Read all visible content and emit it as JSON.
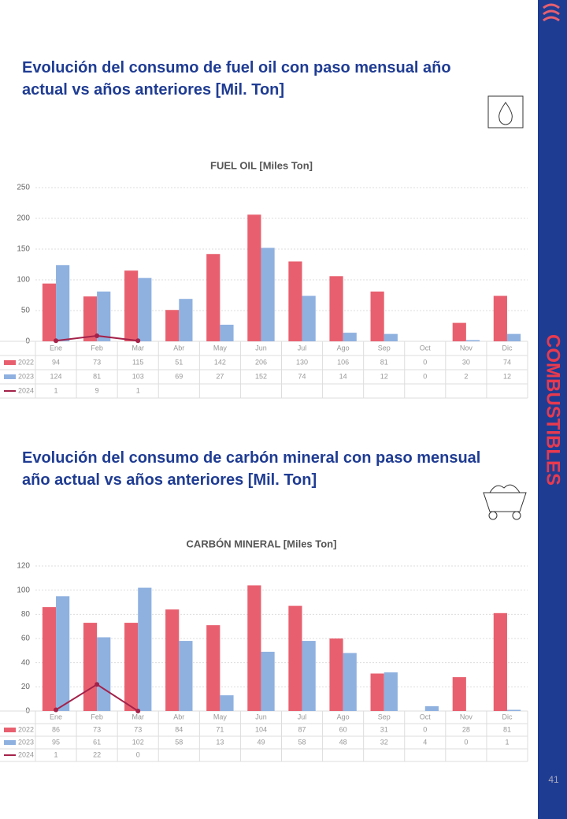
{
  "headings": [
    "Evolución del consumo de fuel oil con paso mensual año actual vs años anteriores [Mil. Ton]",
    "Evolución del consumo de carbón mineral con paso mensual año actual vs años anteriores [Mil. Ton]"
  ],
  "sidebar": "COMBUSTIBLES",
  "page_number": "41",
  "chart_data": [
    {
      "type": "bar",
      "title": "FUEL OIL [Miles Ton]",
      "categories": [
        "Ene",
        "Feb",
        "Mar",
        "Abr",
        "May",
        "Jun",
        "Jul",
        "Ago",
        "Sep",
        "Oct",
        "Nov",
        "Dic"
      ],
      "series": [
        {
          "name": "2022",
          "color": "#e8606f",
          "values": [
            94,
            73,
            115,
            51,
            142,
            206,
            130,
            106,
            81,
            0,
            30,
            74
          ]
        },
        {
          "name": "2023",
          "color": "#8fb1e0",
          "values": [
            124,
            81,
            103,
            69,
            27,
            152,
            74,
            14,
            12,
            0,
            2,
            12
          ]
        },
        {
          "name": "2024",
          "color": "#a4224a",
          "type": "line",
          "values": [
            1,
            9,
            1,
            null,
            null,
            null,
            null,
            null,
            null,
            null,
            null,
            null
          ]
        }
      ],
      "ylim": [
        0,
        250
      ],
      "yticks": [
        0,
        50,
        100,
        150,
        200,
        250
      ],
      "grid": true
    },
    {
      "type": "bar",
      "title": "CARBÓN MINERAL [Miles Ton]",
      "categories": [
        "Ene",
        "Feb",
        "Mar",
        "Abr",
        "May",
        "Jun",
        "Jul",
        "Ago",
        "Sep",
        "Oct",
        "Nov",
        "Dic"
      ],
      "series": [
        {
          "name": "2022",
          "color": "#e8606f",
          "values": [
            86,
            73,
            73,
            84,
            71,
            104,
            87,
            60,
            31,
            0,
            28,
            81
          ]
        },
        {
          "name": "2023",
          "color": "#8fb1e0",
          "values": [
            95,
            61,
            102,
            58,
            13,
            49,
            58,
            48,
            32,
            4,
            0,
            1
          ]
        },
        {
          "name": "2024",
          "color": "#a4224a",
          "type": "line",
          "values": [
            1,
            22,
            0,
            null,
            null,
            null,
            null,
            null,
            null,
            null,
            null,
            null
          ]
        }
      ],
      "ylim": [
        0,
        120
      ],
      "yticks": [
        0,
        20,
        40,
        60,
        80,
        100,
        120
      ],
      "grid": true
    }
  ]
}
